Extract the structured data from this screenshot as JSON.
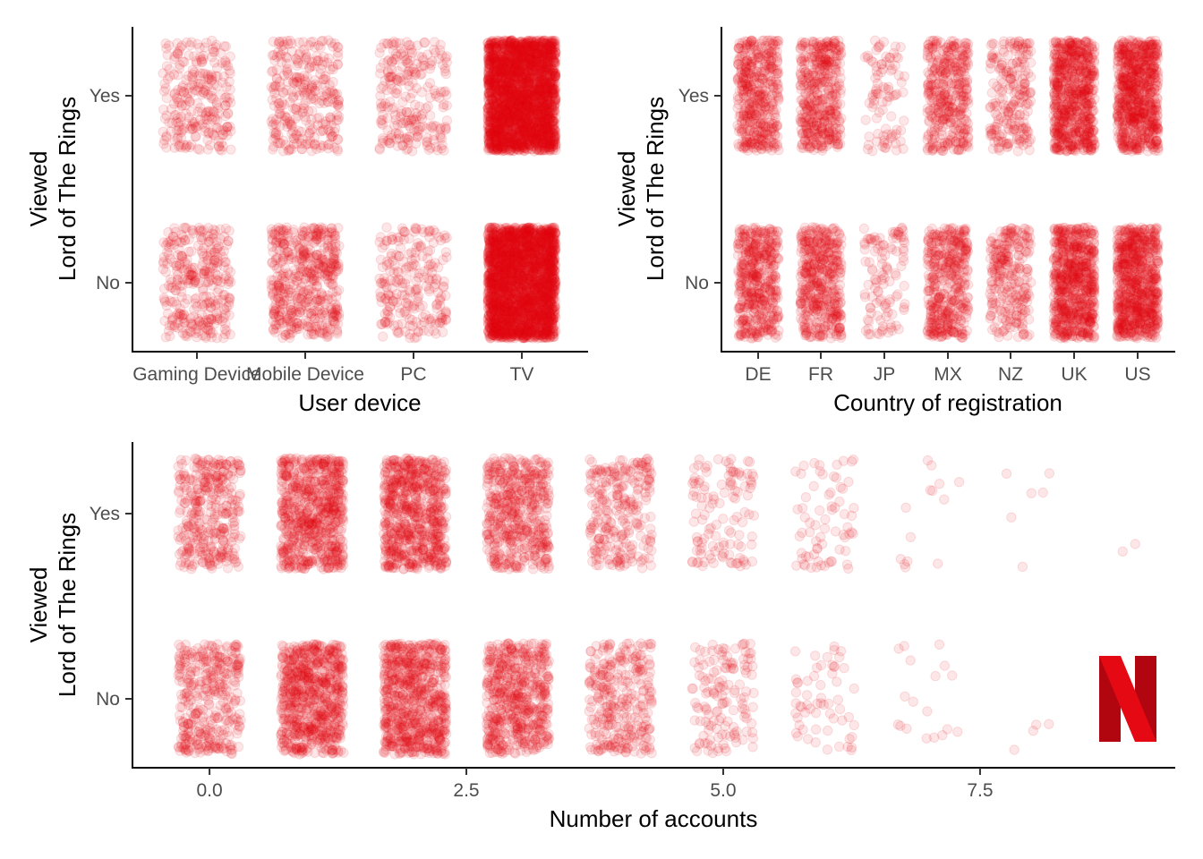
{
  "colors": {
    "point": "#E50914",
    "logo_dark": "#B1060F",
    "logo_light": "#E50914"
  },
  "logo_icon": "netflix-logo-icon",
  "chart_data": [
    {
      "type": "scatter",
      "subtype": "jitter",
      "xlabel": "User device",
      "ylabel_line1": "Viewed",
      "ylabel_line2": "Lord of The Rings",
      "categories": [
        "Gaming Device",
        "Mobile Device",
        "PC",
        "TV"
      ],
      "y_categories": [
        "No",
        "Yes"
      ],
      "point_counts": {
        "Yes": [
          260,
          300,
          240,
          2600
        ],
        "No": [
          320,
          500,
          230,
          2600
        ]
      },
      "point_alpha": 0.1,
      "grid": false
    },
    {
      "type": "scatter",
      "subtype": "jitter",
      "xlabel": "Country of registration",
      "ylabel_line1": "Viewed",
      "ylabel_line2": "Lord of The Rings",
      "categories": [
        "DE",
        "FR",
        "JP",
        "MX",
        "NZ",
        "UK",
        "US"
      ],
      "y_categories": [
        "No",
        "Yes"
      ],
      "point_counts": {
        "Yes": [
          450,
          430,
          90,
          380,
          220,
          700,
          750
        ],
        "No": [
          460,
          450,
          110,
          420,
          260,
          700,
          760
        ]
      },
      "point_alpha": 0.1,
      "grid": false
    },
    {
      "type": "scatter",
      "subtype": "jitter",
      "xlabel": "Number of accounts",
      "ylabel_line1": "Viewed",
      "ylabel_line2": "Lord of The Rings",
      "x_ticks": [
        "0.0",
        "2.5",
        "5.0",
        "7.5"
      ],
      "xlim": [
        -0.75,
        9.4
      ],
      "x_values": [
        0,
        1,
        2,
        3,
        4,
        5,
        6,
        7,
        8,
        9
      ],
      "y_categories": [
        "No",
        "Yes"
      ],
      "point_counts": {
        "Yes": [
          350,
          700,
          700,
          500,
          260,
          120,
          70,
          14,
          6,
          2
        ],
        "No": [
          360,
          720,
          720,
          560,
          300,
          140,
          60,
          18,
          4,
          0
        ]
      },
      "point_alpha": 0.1,
      "grid": false
    }
  ]
}
